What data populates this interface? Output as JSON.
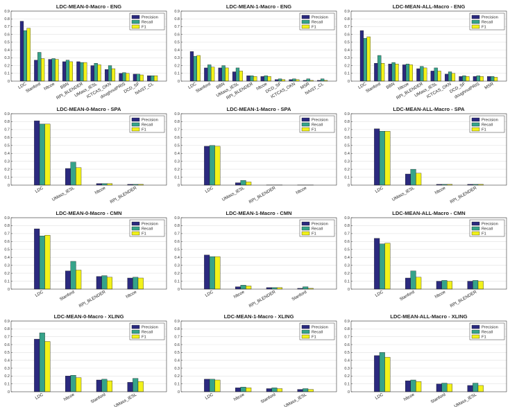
{
  "colors": {
    "precision": "#2b2a7f",
    "recall": "#36a38a",
    "f1": "#f2f21a"
  },
  "chart_data": [
    {
      "type": "bar",
      "title": "LDC-MEAN-0-Macro - ENG",
      "ylim": [
        0,
        0.9
      ],
      "legend": "top-right",
      "grid": true,
      "categories": [
        "LDC",
        "Stanford",
        "hltcoe",
        "BBN",
        "RPI_BLENDER",
        "UMass_IESL",
        "ICTCAS_OKN",
        "doughnutPRIS",
        "DCD_SF",
        "NAIST_CL"
      ],
      "series": [
        {
          "name": "Precision",
          "values": [
            0.77,
            0.27,
            0.28,
            0.25,
            0.25,
            0.2,
            0.15,
            0.1,
            0.09,
            0.07
          ]
        },
        {
          "name": "Recall",
          "values": [
            0.65,
            0.37,
            0.29,
            0.27,
            0.24,
            0.23,
            0.2,
            0.11,
            0.09,
            0.07
          ]
        },
        {
          "name": "F1",
          "values": [
            0.68,
            0.29,
            0.28,
            0.25,
            0.24,
            0.21,
            0.16,
            0.1,
            0.08,
            0.07
          ]
        }
      ]
    },
    {
      "type": "bar",
      "title": "LDC-MEAN-1-Macro - ENG",
      "ylim": [
        0,
        0.9
      ],
      "legend": "top-right",
      "grid": true,
      "categories": [
        "LDC",
        "Stanford",
        "BBN",
        "UMass_IESL",
        "RPI_BLENDER",
        "hltcoe",
        "DCD_SF",
        "ICTCAS_OKN",
        "MSR",
        "NAIST_CL"
      ],
      "series": [
        {
          "name": "Precision",
          "values": [
            0.38,
            0.17,
            0.17,
            0.12,
            0.07,
            0.06,
            0.02,
            0.02,
            0.01,
            0.01
          ]
        },
        {
          "name": "Recall",
          "values": [
            0.32,
            0.21,
            0.2,
            0.17,
            0.07,
            0.07,
            0.03,
            0.03,
            0.03,
            0.03
          ]
        },
        {
          "name": "F1",
          "values": [
            0.33,
            0.18,
            0.17,
            0.13,
            0.06,
            0.06,
            0.02,
            0.02,
            0.01,
            0.01
          ]
        }
      ]
    },
    {
      "type": "bar",
      "title": "LDC-MEAN-ALL-Macro - ENG",
      "ylim": [
        0,
        0.9
      ],
      "legend": "top-right",
      "grid": true,
      "categories": [
        "LDC",
        "Stanford",
        "BBN",
        "hltcoe",
        "RPI_BLENDER",
        "UMass_IESL",
        "ICTCAS_OKN",
        "DCD_SF",
        "doughnutPRIS",
        "MSR"
      ],
      "series": [
        {
          "name": "Precision",
          "values": [
            0.65,
            0.23,
            0.22,
            0.21,
            0.16,
            0.13,
            0.09,
            0.06,
            0.06,
            0.06
          ]
        },
        {
          "name": "Recall",
          "values": [
            0.55,
            0.33,
            0.24,
            0.22,
            0.19,
            0.17,
            0.12,
            0.07,
            0.07,
            0.06
          ]
        },
        {
          "name": "F1",
          "values": [
            0.57,
            0.23,
            0.22,
            0.21,
            0.17,
            0.13,
            0.1,
            0.06,
            0.06,
            0.05
          ]
        }
      ]
    },
    {
      "type": "bar",
      "title": "LDC-MEAN-0-Macro - SPA",
      "ylim": [
        0,
        0.9
      ],
      "legend": "top-right",
      "grid": true,
      "categories": [
        "LDC",
        "UMass_IESL",
        "hltcoe",
        "RPI_BLENDER"
      ],
      "series": [
        {
          "name": "Precision",
          "values": [
            0.81,
            0.21,
            0.02,
            0.01
          ]
        },
        {
          "name": "Recall",
          "values": [
            0.77,
            0.29,
            0.02,
            0.01
          ]
        },
        {
          "name": "F1",
          "values": [
            0.77,
            0.22,
            0.02,
            0.01
          ]
        }
      ]
    },
    {
      "type": "bar",
      "title": "LDC-MEAN-1-Macro - SPA",
      "ylim": [
        0,
        0.9
      ],
      "legend": "top-right",
      "grid": true,
      "categories": [
        "LDC",
        "UMass_IESL",
        "RPI_BLENDER",
        "hltcoe"
      ],
      "series": [
        {
          "name": "Precision",
          "values": [
            0.49,
            0.03,
            0.003,
            0.002
          ]
        },
        {
          "name": "Recall",
          "values": [
            0.5,
            0.06,
            0.003,
            0.002
          ]
        },
        {
          "name": "F1",
          "values": [
            0.49,
            0.04,
            0.003,
            0.002
          ]
        }
      ]
    },
    {
      "type": "bar",
      "title": "LDC-MEAN-ALL-Macro - SPA",
      "ylim": [
        0,
        0.9
      ],
      "legend": "top-right",
      "grid": true,
      "categories": [
        "LDC",
        "UMass_IESL",
        "hltcoe",
        "RPI_BLENDER"
      ],
      "series": [
        {
          "name": "Precision",
          "values": [
            0.71,
            0.14,
            0.01,
            0.01
          ]
        },
        {
          "name": "Recall",
          "values": [
            0.68,
            0.2,
            0.01,
            0.01
          ]
        },
        {
          "name": "F1",
          "values": [
            0.68,
            0.15,
            0.01,
            0.01
          ]
        }
      ]
    },
    {
      "type": "bar",
      "title": "LDC-MEAN-0-Macro - CMN",
      "ylim": [
        0,
        0.9
      ],
      "legend": "top-right",
      "grid": true,
      "categories": [
        "LDC",
        "Stanford",
        "RPI_BLENDER",
        "hltcoe"
      ],
      "series": [
        {
          "name": "Precision",
          "values": [
            0.76,
            0.23,
            0.16,
            0.14
          ]
        },
        {
          "name": "Recall",
          "values": [
            0.67,
            0.35,
            0.17,
            0.15
          ]
        },
        {
          "name": "F1",
          "values": [
            0.68,
            0.24,
            0.15,
            0.14
          ]
        }
      ]
    },
    {
      "type": "bar",
      "title": "LDC-MEAN-1-Macro - CMN",
      "ylim": [
        0,
        0.9
      ],
      "legend": "top-right",
      "grid": true,
      "categories": [
        "LDC",
        "hltcoe",
        "RPI_BLENDER",
        "Stanford"
      ],
      "series": [
        {
          "name": "Precision",
          "values": [
            0.43,
            0.03,
            0.02,
            0.01
          ]
        },
        {
          "name": "Recall",
          "values": [
            0.41,
            0.05,
            0.02,
            0.03
          ]
        },
        {
          "name": "F1",
          "values": [
            0.41,
            0.04,
            0.02,
            0.01
          ]
        }
      ]
    },
    {
      "type": "bar",
      "title": "LDC-MEAN-ALL-Macro - CMN",
      "ylim": [
        0,
        0.9
      ],
      "legend": "top-right",
      "grid": true,
      "categories": [
        "LDC",
        "Stanford",
        "hltcoe",
        "RPI_BLENDER"
      ],
      "series": [
        {
          "name": "Precision",
          "values": [
            0.64,
            0.14,
            0.1,
            0.1
          ]
        },
        {
          "name": "Recall",
          "values": [
            0.57,
            0.23,
            0.11,
            0.11
          ]
        },
        {
          "name": "F1",
          "values": [
            0.58,
            0.15,
            0.1,
            0.1
          ]
        }
      ]
    },
    {
      "type": "bar",
      "title": "LDC-MEAN-0-Macro - XLING",
      "ylim": [
        0,
        0.9
      ],
      "legend": "top-right",
      "grid": true,
      "categories": [
        "LDC",
        "hltcoe",
        "Stanford",
        "UMass_IESL"
      ],
      "series": [
        {
          "name": "Precision",
          "values": [
            0.67,
            0.2,
            0.15,
            0.12
          ]
        },
        {
          "name": "Recall",
          "values": [
            0.75,
            0.21,
            0.16,
            0.17
          ]
        },
        {
          "name": "F1",
          "values": [
            0.64,
            0.18,
            0.14,
            0.13
          ]
        }
      ]
    },
    {
      "type": "bar",
      "title": "LDC-MEAN-1-Macro - XLING",
      "ylim": [
        0,
        0.9
      ],
      "legend": "top-right",
      "grid": true,
      "categories": [
        "LDC",
        "hltcoe",
        "Stanford",
        "UMass_IESL"
      ],
      "series": [
        {
          "name": "Precision",
          "values": [
            0.16,
            0.05,
            0.04,
            0.03
          ]
        },
        {
          "name": "Recall",
          "values": [
            0.16,
            0.06,
            0.05,
            0.04
          ]
        },
        {
          "name": "F1",
          "values": [
            0.15,
            0.05,
            0.04,
            0.03
          ]
        }
      ]
    },
    {
      "type": "bar",
      "title": "LDC-MEAN-ALL-Macro - XLING",
      "ylim": [
        0,
        0.9
      ],
      "legend": "top-right",
      "grid": true,
      "categories": [
        "LDC",
        "hltcoe",
        "Stanford",
        "UMass_IESL"
      ],
      "series": [
        {
          "name": "Precision",
          "values": [
            0.46,
            0.14,
            0.1,
            0.08
          ]
        },
        {
          "name": "Recall",
          "values": [
            0.5,
            0.15,
            0.11,
            0.11
          ]
        },
        {
          "name": "F1",
          "values": [
            0.44,
            0.13,
            0.1,
            0.08
          ]
        }
      ]
    }
  ]
}
